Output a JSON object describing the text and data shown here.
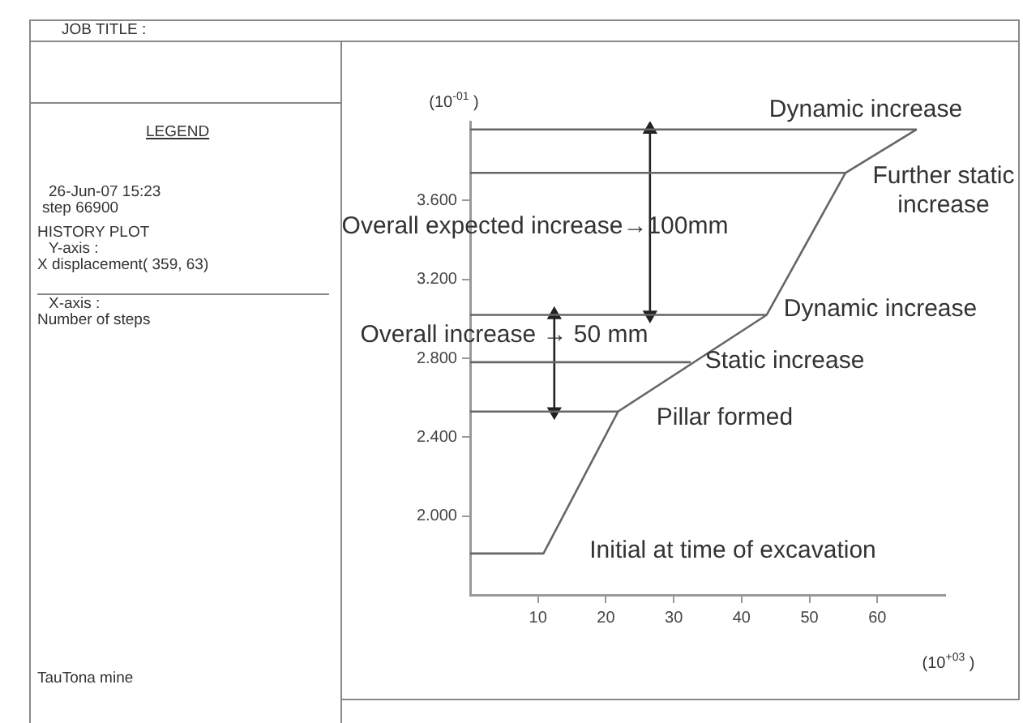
{
  "chart_data": {
    "type": "line",
    "xlabel": "(10$^{+03}$ )",
    "ylabel": "(10$^{-01}$ )",
    "xlim": [
      0,
      70
    ],
    "ylim": [
      1.6,
      4.0
    ],
    "xticks": [
      10,
      20,
      30,
      40,
      50,
      60
    ],
    "yticks": [
      {
        "value": 2.0,
        "label": "2.000"
      },
      {
        "value": 2.4,
        "label": "2.400"
      },
      {
        "value": 2.8,
        "label": "2.800"
      },
      {
        "value": 3.2,
        "label": "3.200"
      },
      {
        "value": 3.6,
        "label": "3.600"
      }
    ],
    "grid": false,
    "legend": false,
    "series": [
      {
        "color": "#666666",
        "x": [
          0,
          10.8,
          21.8,
          43.7,
          55.3,
          65.8
        ],
        "values": [
          1.81,
          1.81,
          2.53,
          3.02,
          3.74,
          3.96
        ]
      },
      {
        "color": "#666666",
        "x": [
          0,
          65.8
        ],
        "values": [
          3.96,
          3.96
        ]
      },
      {
        "color": "#666666",
        "x": [
          0,
          55.3
        ],
        "values": [
          3.74,
          3.74
        ]
      },
      {
        "color": "#666666",
        "x": [
          0,
          43.7
        ],
        "values": [
          3.02,
          3.02
        ]
      },
      {
        "color": "#666666",
        "x": [
          0,
          32.5
        ],
        "values": [
          2.78,
          2.78
        ]
      },
      {
        "color": "#666666",
        "x": [
          0,
          21.8
        ],
        "values": [
          2.53,
          2.53
        ]
      },
      {
        "color": "#222222",
        "x": [
          26.5,
          26.5
        ],
        "values": [
          3.96,
          3.02
        ],
        "marker": "triangle"
      },
      {
        "color": "#222222",
        "x": [
          12.4,
          12.4
        ],
        "values": [
          3.02,
          2.53
        ],
        "marker": "triangle"
      }
    ],
    "annotations": [
      "JOB TITLE :",
      "LEGEND",
      "26-Jun-07  15:23",
      "step   66900",
      "HISTORY PLOT",
      "Y-axis :",
      "X displacement( 359,  63)",
      "X-axis :",
      "Number of steps",
      "TauTona mine",
      "Dynamic increase",
      "Further static increase",
      "Overall expected increase→100mm",
      "Dynamic increase",
      "Overall increase → 50 mm",
      "Static increase",
      "Pillar formed",
      "Initial at time of excavation"
    ]
  }
}
